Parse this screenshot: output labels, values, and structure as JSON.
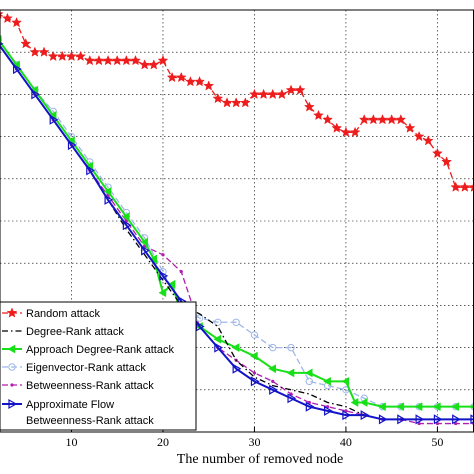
{
  "chart_data": {
    "type": "line",
    "xlabel": "The number of removed node",
    "ylabel": "",
    "xlim": [
      0,
      54
    ],
    "ylim": [
      0,
      1
    ],
    "xticks": [
      10,
      20,
      30,
      40,
      50
    ],
    "grid": true,
    "legend_position": "bottom-left",
    "series": [
      {
        "name": "Random attack",
        "color": "#ee1c1c",
        "line": "dashed",
        "marker": "star",
        "x": [
          0,
          1,
          2,
          3,
          4,
          5,
          6,
          7,
          8,
          9,
          10,
          11,
          12,
          13,
          14,
          15,
          16,
          17,
          18,
          19,
          20,
          21,
          22,
          23,
          24,
          25,
          26,
          27,
          28,
          29,
          30,
          31,
          32,
          33,
          34,
          35,
          36,
          37,
          38,
          39,
          40,
          41,
          42,
          43,
          44,
          45,
          46,
          47,
          48,
          49,
          50,
          51,
          52,
          53,
          54
        ],
        "y": [
          1.0,
          0.99,
          0.99,
          0.98,
          0.97,
          0.92,
          0.9,
          0.9,
          0.89,
          0.89,
          0.89,
          0.89,
          0.88,
          0.88,
          0.88,
          0.88,
          0.88,
          0.88,
          0.87,
          0.87,
          0.88,
          0.84,
          0.84,
          0.83,
          0.83,
          0.82,
          0.79,
          0.78,
          0.78,
          0.78,
          0.8,
          0.8,
          0.8,
          0.8,
          0.81,
          0.81,
          0.77,
          0.75,
          0.74,
          0.72,
          0.71,
          0.71,
          0.74,
          0.74,
          0.74,
          0.74,
          0.74,
          0.72,
          0.7,
          0.69,
          0.66,
          0.64,
          0.58,
          0.58,
          0.58
        ]
      },
      {
        "name": "Degree-Rank attack",
        "color": "#000000",
        "line": "dashdot",
        "marker": "none",
        "x": [
          0,
          2,
          4,
          6,
          8,
          10,
          12,
          14,
          16,
          18,
          20,
          22,
          24,
          26,
          28,
          30,
          32,
          34,
          36,
          38,
          40,
          42,
          44,
          46,
          48,
          50,
          52,
          54
        ],
        "y": [
          0.97,
          0.92,
          0.86,
          0.8,
          0.74,
          0.68,
          0.62,
          0.55,
          0.48,
          0.42,
          0.36,
          0.3,
          0.28,
          0.25,
          0.17,
          0.13,
          0.11,
          0.1,
          0.09,
          0.07,
          0.06,
          0.04,
          0.03,
          0.03,
          0.03,
          0.03,
          0.03,
          0.03
        ]
      },
      {
        "name": "Approach Degree-Rank attack",
        "color": "#18e018",
        "line": "solid",
        "marker": "triangle-left",
        "x": [
          0,
          2,
          4,
          6,
          8,
          10,
          12,
          14,
          16,
          18,
          19,
          20,
          21,
          22,
          24,
          26,
          28,
          30,
          32,
          34,
          36,
          38,
          40,
          41,
          42,
          44,
          46,
          48,
          50,
          52,
          54
        ],
        "y": [
          0.98,
          0.93,
          0.87,
          0.81,
          0.75,
          0.69,
          0.63,
          0.57,
          0.51,
          0.45,
          0.41,
          0.33,
          0.35,
          0.28,
          0.25,
          0.22,
          0.2,
          0.18,
          0.15,
          0.14,
          0.14,
          0.12,
          0.12,
          0.07,
          0.07,
          0.06,
          0.06,
          0.06,
          0.06,
          0.06,
          0.06
        ]
      },
      {
        "name": "Eigenvector-Rank attack",
        "color": "#9fb7ea",
        "line": "dashed",
        "marker": "circle",
        "x": [
          0,
          2,
          4,
          6,
          8,
          10,
          12,
          14,
          16,
          18,
          20,
          22,
          24,
          26,
          28,
          30,
          32,
          34,
          36,
          38,
          40,
          42,
          44,
          46,
          48,
          50,
          52,
          54
        ],
        "y": [
          0.98,
          0.93,
          0.87,
          0.81,
          0.76,
          0.7,
          0.64,
          0.58,
          0.52,
          0.46,
          0.38,
          0.3,
          0.27,
          0.26,
          0.26,
          0.23,
          0.2,
          0.2,
          0.12,
          0.11,
          0.1,
          0.08,
          0.06,
          0.06,
          0.06,
          0.06,
          0.06,
          0.06
        ]
      },
      {
        "name": "Betweenness-Rank attack",
        "color": "#b01eb0",
        "line": "dashed",
        "marker": "point",
        "x": [
          0,
          2,
          4,
          6,
          8,
          10,
          12,
          14,
          16,
          18,
          20,
          22,
          24,
          26,
          28,
          30,
          32,
          34,
          36,
          38,
          40,
          42,
          44,
          46,
          48,
          50,
          52,
          54
        ],
        "y": [
          0.98,
          0.92,
          0.86,
          0.8,
          0.74,
          0.68,
          0.62,
          0.56,
          0.5,
          0.44,
          0.42,
          0.38,
          0.25,
          0.2,
          0.17,
          0.14,
          0.12,
          0.09,
          0.07,
          0.06,
          0.05,
          0.04,
          0.03,
          0.03,
          0.02,
          0.02,
          0.02,
          0.02
        ]
      },
      {
        "name": "Approximate Flow Betweenness-Rank attack",
        "legend_lines": [
          "Approximate Flow",
          "Betweenness-Rank attack"
        ],
        "color": "#1313c8",
        "line": "solid",
        "marker": "triangle-right",
        "x": [
          0,
          2,
          4,
          6,
          8,
          10,
          12,
          14,
          16,
          18,
          20,
          22,
          24,
          26,
          28,
          30,
          32,
          34,
          36,
          38,
          40,
          42,
          44,
          46,
          48,
          50,
          52,
          54
        ],
        "y": [
          0.98,
          0.92,
          0.86,
          0.8,
          0.74,
          0.68,
          0.62,
          0.55,
          0.49,
          0.43,
          0.37,
          0.31,
          0.25,
          0.2,
          0.15,
          0.12,
          0.1,
          0.08,
          0.06,
          0.05,
          0.04,
          0.04,
          0.03,
          0.03,
          0.03,
          0.03,
          0.03,
          0.03
        ]
      }
    ]
  }
}
